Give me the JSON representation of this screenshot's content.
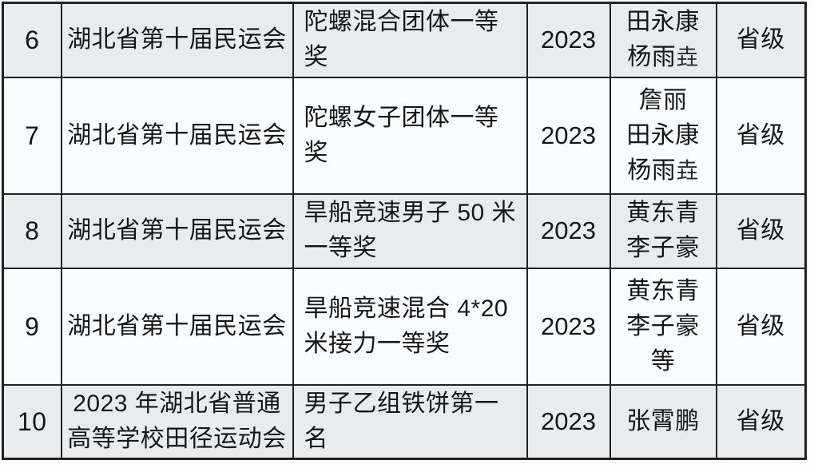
{
  "page": {
    "background": "#fdfdfe"
  },
  "table": {
    "border_color": "#222222",
    "text_color": "#161616",
    "row_bg_shaded": "#e9ebec",
    "row_bg_plain": "#fafbfd",
    "fallback_glyph": "垚",
    "rows": [
      {
        "index": "6",
        "competition": [
          "湖北省第十届民运会"
        ],
        "award": [
          "陀螺混合团体一等奖"
        ],
        "year": "2023",
        "athletes": [
          "田永康",
          "杨雨垚"
        ],
        "level": "省级"
      },
      {
        "index": "7",
        "competition": [
          "湖北省第十届民运会"
        ],
        "award": [
          "陀螺女子团体一等奖"
        ],
        "year": "2023",
        "athletes": [
          "詹丽",
          "田永康",
          "杨雨垚"
        ],
        "level": "省级"
      },
      {
        "index": "8",
        "competition": [
          "湖北省第十届民运会"
        ],
        "award": [
          "旱船竞速男子 50 米",
          "一等奖"
        ],
        "year": "2023",
        "athletes": [
          "黄东青",
          "李子豪"
        ],
        "level": "省级"
      },
      {
        "index": "9",
        "competition": [
          "湖北省第十届民运会"
        ],
        "award": [
          "旱船竞速混合 4*20",
          "米接力一等奖"
        ],
        "year": "2023",
        "athletes": [
          "黄东青",
          "李子豪",
          "等"
        ],
        "level": "省级"
      },
      {
        "index": "10",
        "competition": [
          "2023 年湖北省普通",
          "高等学校田径运动会"
        ],
        "award": [
          "男子乙组铁饼第一名"
        ],
        "year": "2023",
        "athletes": [
          "张霄鹏"
        ],
        "level": "省级"
      }
    ]
  }
}
